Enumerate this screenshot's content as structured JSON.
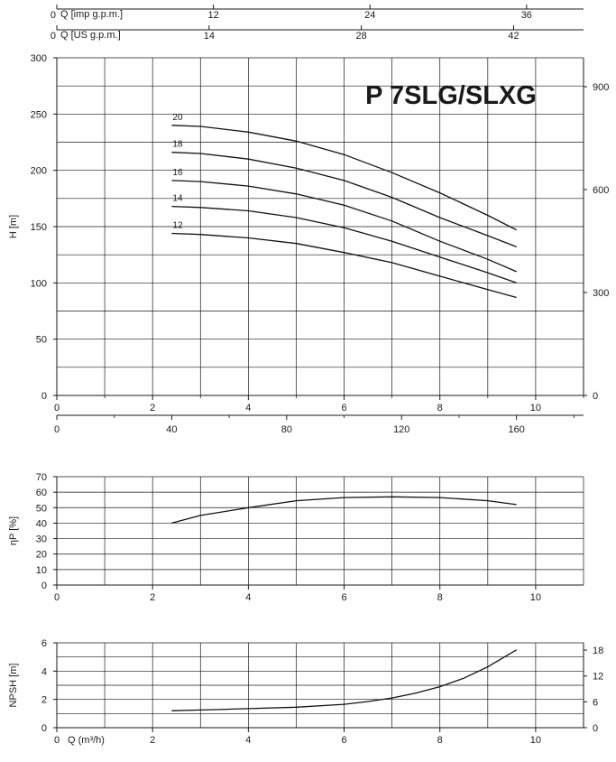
{
  "chart_data": [
    {
      "type": "line",
      "panel": "head",
      "title": "P 7SLG/SLXG",
      "ylabel": "H [m]",
      "xlim": [
        0,
        11
      ],
      "ylim": [
        0,
        300
      ],
      "yticks": [
        0,
        50,
        100,
        150,
        200,
        250,
        300
      ],
      "yticks_right": [
        "0",
        "300",
        "600",
        "900"
      ],
      "xticks_m3h": [
        0,
        2,
        4,
        6,
        8,
        10
      ],
      "xticks_lmin": [
        {
          "label": "0",
          "x": 0
        },
        {
          "label": "40",
          "x": 2.4
        },
        {
          "label": "80",
          "x": 4.8
        },
        {
          "label": "120",
          "x": 7.2
        },
        {
          "label": "160",
          "x": 9.6
        }
      ],
      "top_axes": [
        {
          "label": "Q [imp g.p.m.]",
          "zero": "0",
          "ticks": [
            {
              "label": "12",
              "x": 3.27
            },
            {
              "label": "24",
              "x": 6.54
            },
            {
              "label": "36",
              "x": 9.81
            }
          ]
        },
        {
          "label": "Q [US g.p.m.]",
          "zero": "0",
          "ticks": [
            {
              "label": "14",
              "x": 3.18
            },
            {
              "label": "28",
              "x": 6.36
            },
            {
              "label": "42",
              "x": 9.54
            }
          ]
        }
      ],
      "series": [
        {
          "name": "20",
          "x": [
            2.4,
            3,
            4,
            5,
            6,
            7,
            8,
            9,
            9.6
          ],
          "y": [
            240,
            239,
            234,
            226,
            214,
            198,
            180,
            160,
            147
          ]
        },
        {
          "name": "18",
          "x": [
            2.4,
            3,
            4,
            5,
            6,
            7,
            8,
            9,
            9.6
          ],
          "y": [
            216,
            215,
            210,
            202,
            191,
            176,
            158,
            142,
            132
          ]
        },
        {
          "name": "16",
          "x": [
            2.4,
            3,
            4,
            5,
            6,
            7,
            8,
            9,
            9.6
          ],
          "y": [
            191,
            190,
            186,
            179,
            169,
            155,
            137,
            121,
            110
          ]
        },
        {
          "name": "14",
          "x": [
            2.4,
            3,
            4,
            5,
            6,
            7,
            8,
            9,
            9.6
          ],
          "y": [
            168,
            167,
            164,
            158,
            149,
            137,
            123,
            109,
            100
          ]
        },
        {
          "name": "12",
          "x": [
            2.4,
            3,
            4,
            5,
            6,
            7,
            8,
            9,
            9.6
          ],
          "y": [
            144,
            143,
            140,
            135,
            127,
            118,
            106,
            94,
            87
          ]
        }
      ]
    },
    {
      "type": "line",
      "panel": "efficiency",
      "ylabel": "ηP [%]",
      "xlim": [
        0,
        11
      ],
      "ylim": [
        0,
        70
      ],
      "yticks": [
        0,
        10,
        20,
        30,
        40,
        50,
        60,
        70
      ],
      "xticks": [
        0,
        2,
        4,
        6,
        8,
        10
      ],
      "series": [
        {
          "x": [
            2.4,
            3,
            4,
            5,
            6,
            7,
            8,
            9,
            9.6
          ],
          "y": [
            40,
            45,
            50,
            54.5,
            56.5,
            57,
            56.5,
            54.5,
            52
          ]
        }
      ]
    },
    {
      "type": "line",
      "panel": "npsh",
      "ylabel": "NPSH [m]",
      "xlabel": "Q (m³/h)",
      "xlim": [
        0,
        11
      ],
      "ylim": [
        0,
        6
      ],
      "yticks": [
        0,
        2,
        4,
        6
      ],
      "yticks_right": [
        "0",
        "6",
        "12",
        "18"
      ],
      "xticks": [
        0,
        2,
        4,
        6,
        8,
        10
      ],
      "series": [
        {
          "x": [
            2.4,
            3,
            4,
            5,
            6,
            6.5,
            7,
            7.5,
            8,
            8.5,
            9,
            9.3,
            9.6
          ],
          "y": [
            1.2,
            1.25,
            1.35,
            1.45,
            1.65,
            1.85,
            2.1,
            2.45,
            2.9,
            3.5,
            4.3,
            4.9,
            5.5
          ]
        }
      ]
    }
  ]
}
